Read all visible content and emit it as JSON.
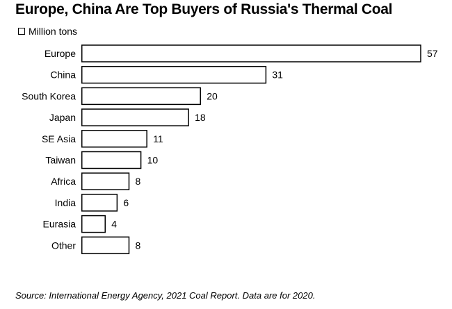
{
  "title": "Europe, China Are Top Buyers of Russia's Thermal Coal",
  "legend_label": "Million tons",
  "source": "Source: International Energy Agency, 2021 Coal Report. Data are for 2020.",
  "chart_data": {
    "type": "bar",
    "orientation": "horizontal",
    "title": "Europe, China Are Top Buyers of Russia's Thermal Coal",
    "categories": [
      "Europe",
      "China",
      "South Korea",
      "Japan",
      "SE Asia",
      "Taiwan",
      "Africa",
      "India",
      "Eurasia",
      "Other"
    ],
    "values": [
      57,
      31,
      20,
      18,
      11,
      10,
      8,
      6,
      4,
      8
    ],
    "series": [
      {
        "name": "Million tons",
        "values": [
          57,
          31,
          20,
          18,
          11,
          10,
          8,
          6,
          4,
          8
        ]
      }
    ],
    "xlabel": "",
    "ylabel": "",
    "xlim": [
      0,
      57
    ],
    "grid": false,
    "legend": "top-left",
    "bar_fill": "#ffffff",
    "bar_stroke": "#000000"
  }
}
